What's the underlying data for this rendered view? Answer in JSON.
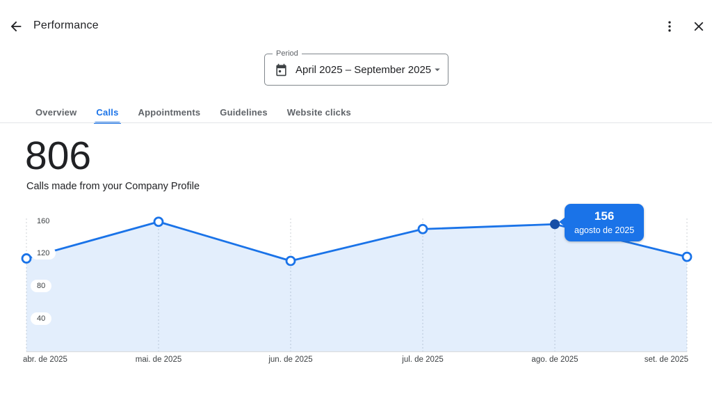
{
  "header": {
    "title": "Performance",
    "back_icon": "arrow-left",
    "more_icon": "kebab-menu",
    "close_icon": "close"
  },
  "period_selector": {
    "label": "Period",
    "value": "April 2025 – September 2025",
    "calendar_icon": "calendar",
    "dropdown_icon": "caret-down"
  },
  "tabs": [
    {
      "label": "Overview",
      "active": false
    },
    {
      "label": "Calls",
      "active": true
    },
    {
      "label": "Appointments",
      "active": false
    },
    {
      "label": "Guidelines",
      "active": false
    },
    {
      "label": "Website clicks",
      "active": false
    }
  ],
  "metric": {
    "value": "806",
    "description": "Calls made from your Company Profile"
  },
  "chart_data": {
    "type": "area",
    "title": "Calls made from your Company Profile",
    "categories": [
      "abr. de 2025",
      "mai. de 2025",
      "jun. de 2025",
      "jul. de 2025",
      "ago. de 2025",
      "set. de 2025"
    ],
    "values": [
      114,
      159,
      111,
      150,
      156,
      116
    ],
    "yticks": [
      40,
      80,
      120,
      160
    ],
    "ylim": [
      0,
      175
    ],
    "grid": "vertical-dashed",
    "legend": "none",
    "highlight_index": 4,
    "tooltip": {
      "value": "156",
      "label": "agosto de 2025"
    },
    "colors": {
      "line": "#1a73e8",
      "area": "rgba(26,115,232,0.12)",
      "active_dot": "#174ea6",
      "tooltip_bg": "#1a73e8",
      "gridline": "#cdd1d5",
      "axis": "#dadce0"
    }
  }
}
